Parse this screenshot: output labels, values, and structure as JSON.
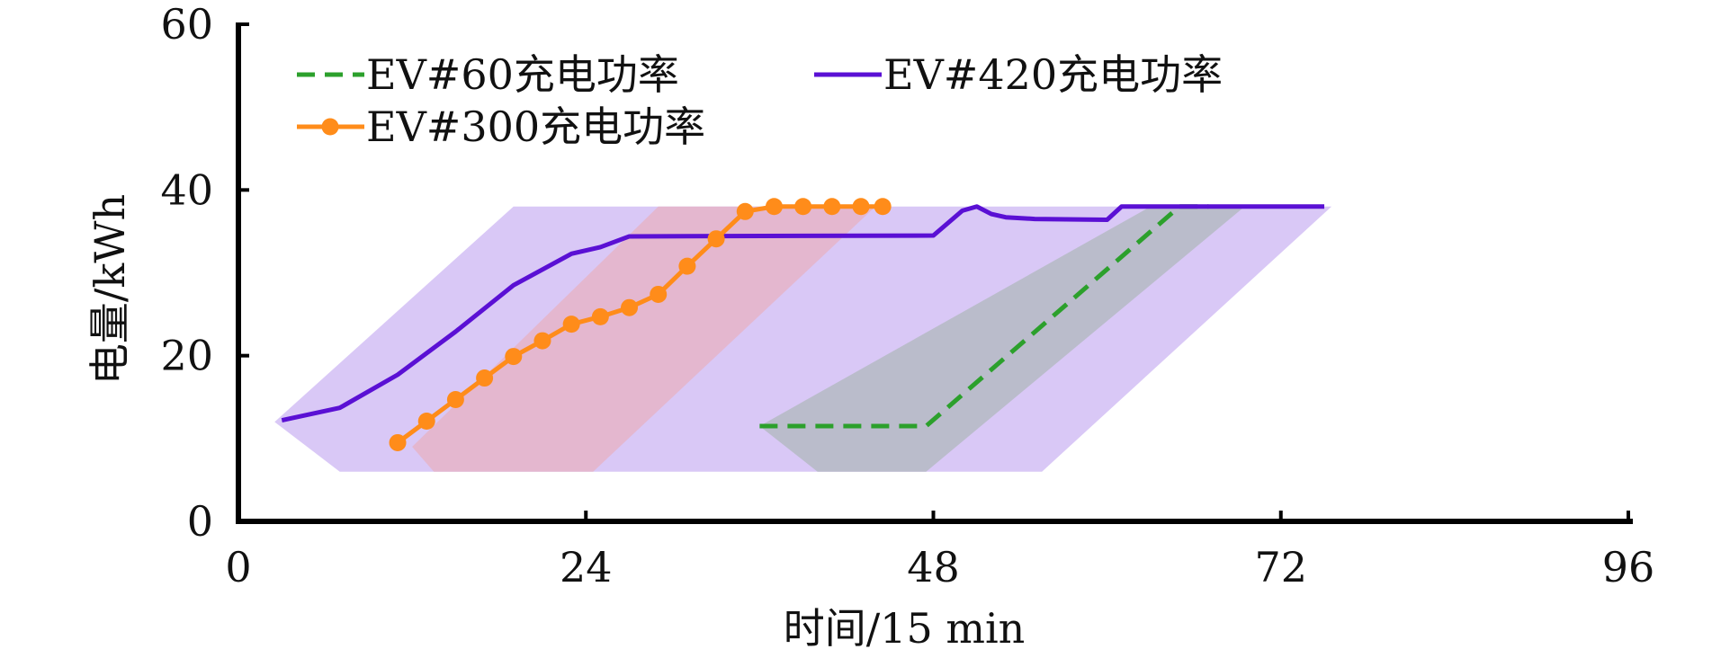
{
  "chart_data": {
    "type": "line",
    "xlabel": "时间/15 min",
    "ylabel": "电量/kWh",
    "xlim": [
      0,
      96
    ],
    "ylim": [
      0,
      60
    ],
    "xticks": [
      0,
      24,
      48,
      72,
      96
    ],
    "yticks": [
      0,
      20,
      40,
      60
    ],
    "grid": false,
    "legend_position": "top-left",
    "bands": [
      {
        "color": "#cbb3f2",
        "opacity": 0.72,
        "polygon": [
          [
            2.5,
            12
          ],
          [
            7,
            6
          ],
          [
            55.5,
            6
          ],
          [
            75.5,
            38
          ],
          [
            19,
            38
          ]
        ]
      },
      {
        "color": "#e6b3c6",
        "opacity": 0.8,
        "polygon": [
          [
            12,
            9
          ],
          [
            13.5,
            6
          ],
          [
            24.5,
            6
          ],
          [
            44,
            38
          ],
          [
            29,
            38
          ]
        ]
      },
      {
        "color": "#b8bcc8",
        "opacity": 0.95,
        "polygon": [
          [
            36,
            11.5
          ],
          [
            40,
            6
          ],
          [
            47.5,
            6
          ],
          [
            69.5,
            38
          ],
          [
            63,
            38
          ]
        ]
      }
    ],
    "series": [
      {
        "name": "EV#60充电功率",
        "color": "#2ca02c",
        "dash": true,
        "markers": false,
        "points": [
          [
            36,
            11.5
          ],
          [
            47.5,
            11.5
          ],
          [
            65,
            38
          ],
          [
            67,
            38
          ]
        ]
      },
      {
        "name": "EV#420充电功率",
        "color": "#5a10d4",
        "dash": false,
        "markers": false,
        "points": [
          [
            3,
            12.2
          ],
          [
            7,
            13.7
          ],
          [
            11,
            17.7
          ],
          [
            15,
            22.9
          ],
          [
            19,
            28.5
          ],
          [
            23,
            32.3
          ],
          [
            25,
            33.1
          ],
          [
            27,
            34.4
          ],
          [
            48,
            34.5
          ],
          [
            50,
            37.5
          ],
          [
            51,
            38
          ],
          [
            52,
            37.1
          ],
          [
            53,
            36.7
          ],
          [
            55,
            36.5
          ],
          [
            60,
            36.4
          ],
          [
            61,
            38
          ],
          [
            75,
            38
          ]
        ]
      },
      {
        "name": "EV#300充电功率",
        "color": "#ff8c1a",
        "dash": false,
        "markers": true,
        "points": [
          [
            11,
            9.5
          ],
          [
            13,
            12.1
          ],
          [
            15,
            14.7
          ],
          [
            17,
            17.3
          ],
          [
            19,
            19.9
          ],
          [
            21,
            21.8
          ],
          [
            23,
            23.8
          ],
          [
            25,
            24.7
          ],
          [
            27,
            25.8
          ],
          [
            29,
            27.4
          ],
          [
            31,
            30.8
          ],
          [
            33,
            34.1
          ],
          [
            35,
            37.4
          ],
          [
            37,
            38
          ],
          [
            39,
            38
          ],
          [
            41,
            38
          ],
          [
            43,
            38
          ],
          [
            44.5,
            38
          ]
        ]
      }
    ]
  }
}
